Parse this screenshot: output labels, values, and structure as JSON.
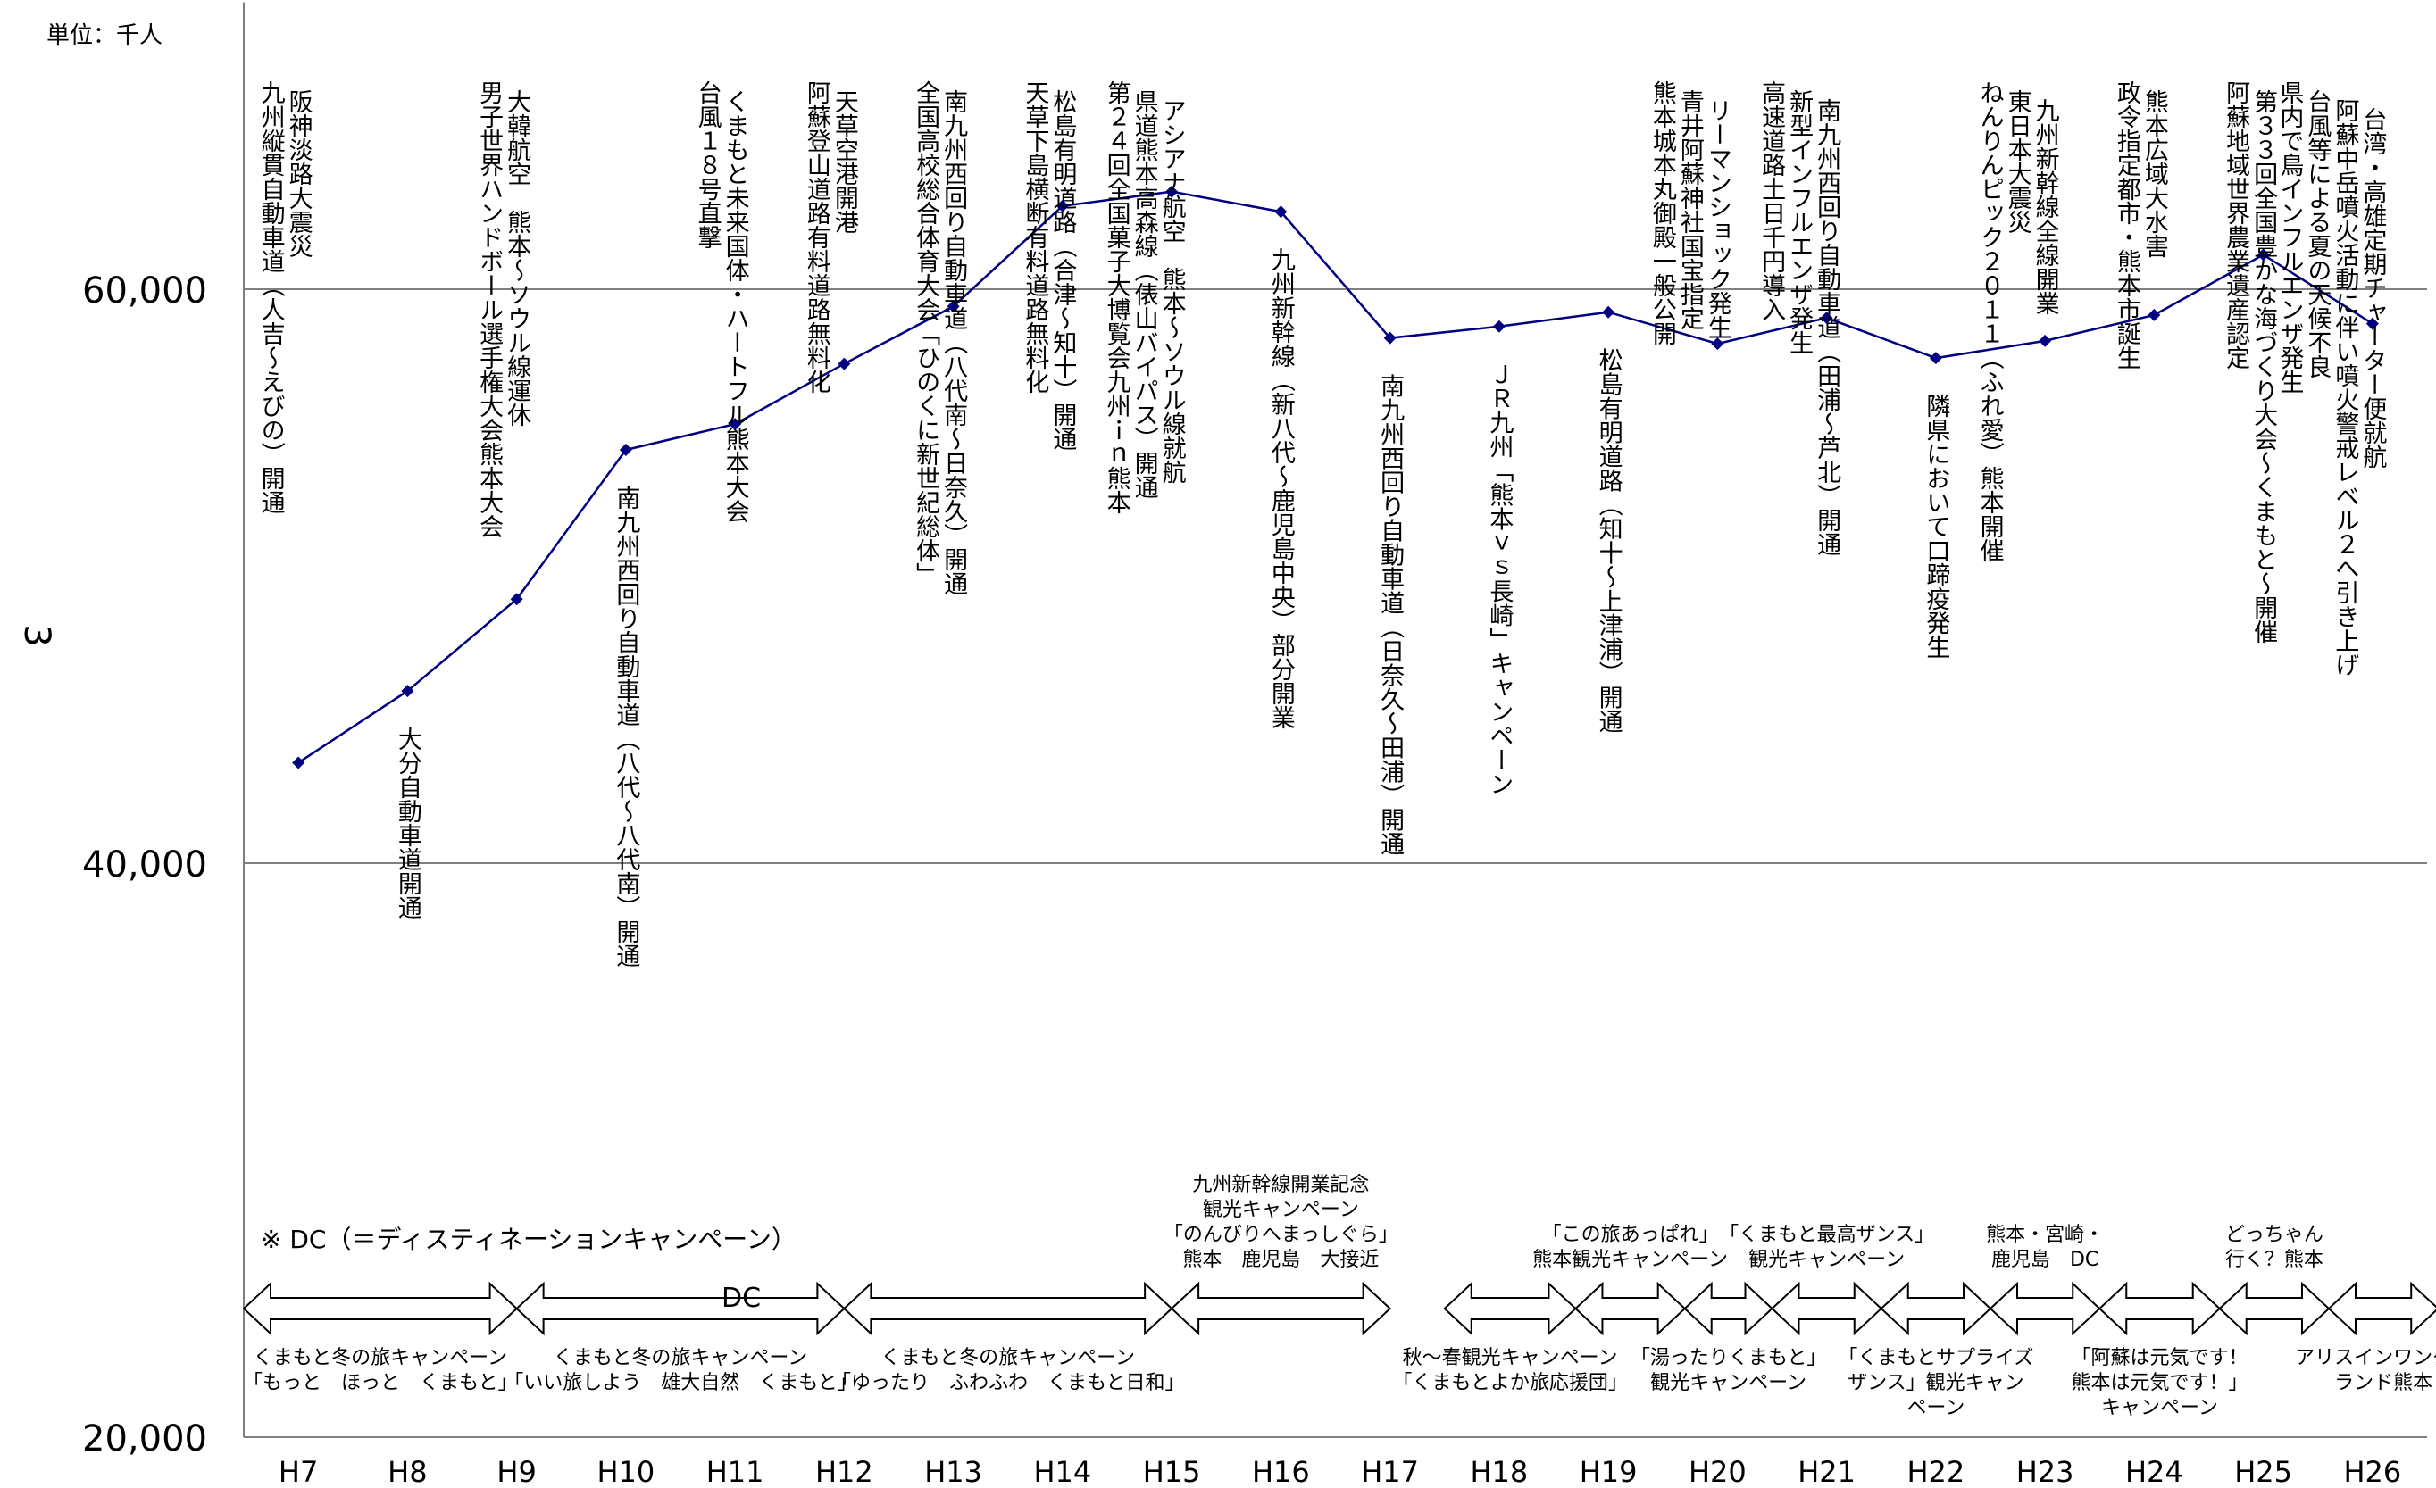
{
  "chart_data": {
    "type": "line",
    "unit_label": "単位：千人",
    "ylabel": "3",
    "ylim": [
      20000,
      70000
    ],
    "y_ticks": [
      "20,000",
      "40,000",
      "60,000"
    ],
    "y_tick_values": [
      20000,
      40000,
      60000
    ],
    "gridlines": [
      40000,
      60000
    ],
    "categories": [
      "H7",
      "H8",
      "H9",
      "H10",
      "H11",
      "H12",
      "H13",
      "H14",
      "H15",
      "H16",
      "H17",
      "H18",
      "H19",
      "H20",
      "H21",
      "H22",
      "H23",
      "H24",
      "H25",
      "H26"
    ],
    "series": [
      {
        "values": [
          43500,
          46000,
          49200,
          54400,
          55300,
          57400,
          59400,
          62900,
          63400,
          62700,
          58300,
          58700,
          59200,
          58100,
          59000,
          57600,
          58200,
          59100,
          61200,
          58800
        ]
      }
    ],
    "events": [
      {
        "col": 0,
        "lines": [
          "九州縦貫自動車道（人吉～えびの）開通",
          "阪神淡路大震災"
        ]
      },
      {
        "col": 1,
        "lines": [
          "大分自動車道開通"
        ]
      },
      {
        "col": 2,
        "lines": [
          "男子世界ハンドボール選手権大会熊本大会",
          "大韓航空　熊本～ソウル線運休"
        ]
      },
      {
        "col": 3,
        "lines": [
          "南九州西回り自動車道（八代～八代南）開通"
        ]
      },
      {
        "col": 4,
        "lines": [
          "台風１８号直撃",
          "くまもと未来国体・ハートフル熊本大会"
        ]
      },
      {
        "col": 5,
        "lines": [
          "阿蘇登山道路有料道路無料化",
          "天草空港開港"
        ]
      },
      {
        "col": 6,
        "lines": [
          "全国高校総合体育大会「ひのくに新世紀総体」",
          "南九州西回り自動車道（八代南～日奈久）開通"
        ]
      },
      {
        "col": 7,
        "lines": [
          "天草下島横断有料道路無料化",
          "松島有明道路（合津～知十）開通"
        ]
      },
      {
        "col": 8,
        "lines": [
          "第２４回全国菓子大博覧会九州ｉｎ熊本",
          "県道熊本高森線（俵山バイパス）開通",
          "アシアナ航空　熊本～ソウル線就航"
        ]
      },
      {
        "col": 9,
        "lines": [
          "九州新幹線（新八代～鹿児島中央）部分開業"
        ]
      },
      {
        "col": 10,
        "lines": [
          "南九州西回り自動車道（日奈久～田浦）開通"
        ]
      },
      {
        "col": 11,
        "lines": [
          "ＪＲ九州「熊本ｖｓ長崎」キャンペーン"
        ]
      },
      {
        "col": 12,
        "lines": [
          "松島有明道路（知十～上津浦）開通"
        ]
      },
      {
        "col": 13,
        "lines": [
          "熊本城本丸御殿一般公開",
          "青井阿蘇神社国宝指定",
          "リーマンショック発生"
        ]
      },
      {
        "col": 14,
        "lines": [
          "高速道路土日千円導入",
          "新型インフルエンザ発生",
          "南九州西回り自動車道（田浦～芦北）開通"
        ]
      },
      {
        "col": 15,
        "lines": [
          "隣県において口蹄疫発生"
        ]
      },
      {
        "col": 16,
        "lines": [
          "ねんりんピック２０１１（ふれ愛）熊本開催",
          "東日本大震災",
          "九州新幹線全線開業"
        ]
      },
      {
        "col": 17,
        "lines": [
          "政令指定都市・熊本市誕生",
          "熊本広域大水害"
        ]
      },
      {
        "col": 18,
        "lines": [
          "阿蘇地域世界農業遺産認定",
          "第３３回全国豊かな海づくり大会～くまもと～開催"
        ]
      },
      {
        "col": 19,
        "lines": [
          "県内で鳥インフルエンザ発生",
          "台風等による夏の天候不良",
          "阿蘇中岳噴火活動に伴い噴火警戒レベル２へ引き上げ",
          "台湾・高雄定期チャーター便就航"
        ]
      }
    ],
    "dc_note": "※ DC（＝ディスティネーションキャンペーン）",
    "dc_arrow_label": "DC",
    "campaigns": [
      {
        "from": -0.5,
        "to": 2.0,
        "above": [],
        "below": [
          "くまもと冬の旅キャンペーン",
          "「もっと　ほっと　くまもと」"
        ]
      },
      {
        "from": 2.0,
        "to": 5.0,
        "above": [],
        "below": [
          "くまもと冬の旅キャンペーン",
          "「いい旅しよう　雄大自然　くまもと」"
        ]
      },
      {
        "from": 5.0,
        "to": 8.0,
        "above": [],
        "below": [
          "くまもと冬の旅キャンペーン",
          "「ゆったり　ふわふわ　くまもと日和」"
        ]
      },
      {
        "from": 8.0,
        "to": 10.0,
        "above": [
          "九州新幹線開業記念",
          "観光キャンペーン",
          "「のんびりへまっしぐら」",
          "熊本　鹿児島　大接近"
        ],
        "below": []
      },
      {
        "from": 10.5,
        "to": 11.7,
        "above": [],
        "below": [
          "秋～春観光キャンペーン",
          "「くまもとよか旅応援団」"
        ]
      },
      {
        "from": 11.7,
        "to": 12.7,
        "above": [
          "「この旅あっぱれ」",
          "熊本観光キャンペーン"
        ],
        "below": []
      },
      {
        "from": 12.7,
        "to": 13.5,
        "above": [],
        "below": [
          "「湯ったりくまもと」",
          "観光キャンペーン"
        ]
      },
      {
        "from": 13.5,
        "to": 14.5,
        "above": [
          "「くまもと最高ザンス」",
          "観光キャンペーン"
        ],
        "below": []
      },
      {
        "from": 14.5,
        "to": 15.5,
        "above": [],
        "below": [
          "「くまもとサプライズ",
          "ザンス」観光キャン",
          "ペーン"
        ]
      },
      {
        "from": 15.5,
        "to": 16.5,
        "above": [
          "熊本・宮崎・",
          "鹿児島　DC"
        ],
        "below": []
      },
      {
        "from": 16.5,
        "to": 17.6,
        "above": [],
        "below": [
          "「阿蘇は元気です！",
          "熊本は元気です！」",
          "キャンペーン"
        ]
      },
      {
        "from": 17.6,
        "to": 18.6,
        "above": [
          "どっちゃん",
          "行く？熊本"
        ],
        "below": []
      },
      {
        "from": 18.6,
        "to": 19.6,
        "above": [],
        "below": [
          "アリスインワンダー",
          "ランド熊本"
        ]
      }
    ]
  }
}
